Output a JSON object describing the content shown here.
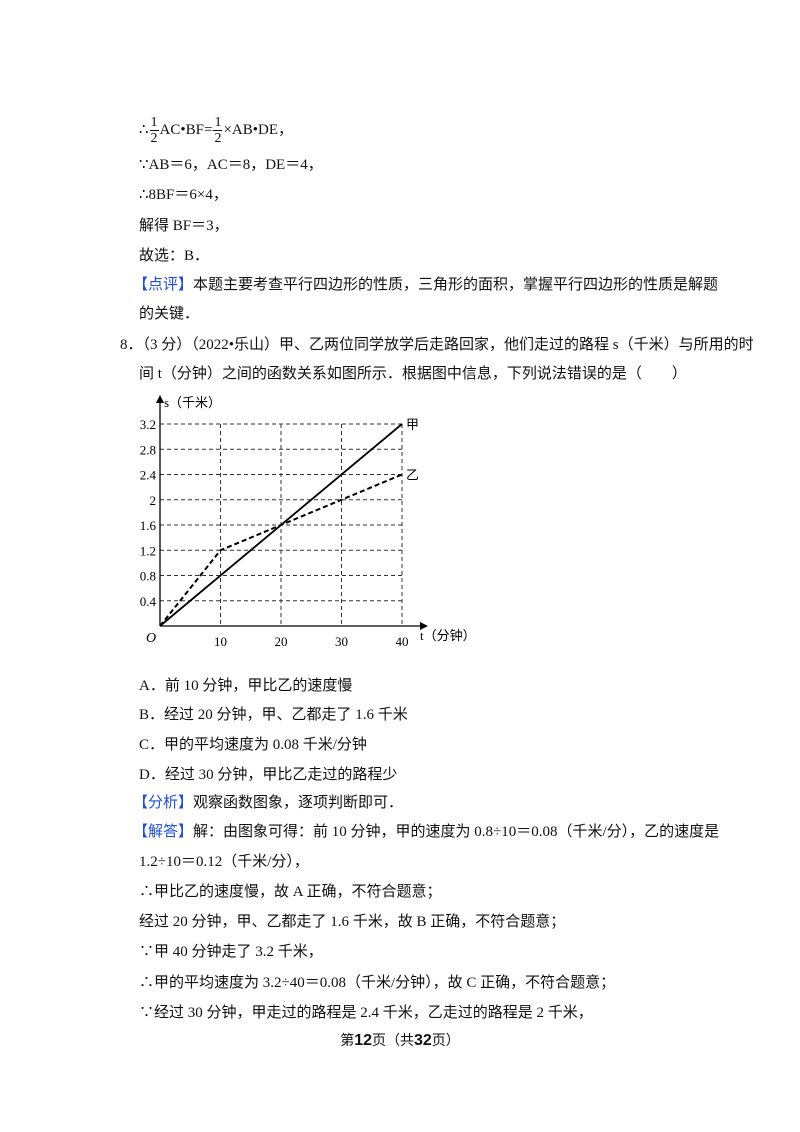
{
  "solution_prev": {
    "fraction_line": {
      "prefix": "∴",
      "num1": "1",
      "den1": "2",
      "mid": "AC•BF=",
      "num2": "1",
      "den2": "2",
      "suffix": "×AB•DE，"
    },
    "lines": [
      "∵AB＝6，AC＝8，DE＝4，",
      "∴8BF＝6×4，",
      "解得 BF＝3，",
      "故选：B．"
    ],
    "review_tag": "【点评】",
    "review_text": "本题主要考查平行四边形的性质，三角形的面积，掌握平行四边形的性质是解题",
    "review_text2": "的关键．"
  },
  "question": {
    "number": "8．",
    "line1": "（3 分）（2022•乐山）甲、乙两位同学放学后走路回家，他们走过的路程 s（千米）与所用的时",
    "line2": "间 t（分钟）之间的函数关系如图所示．根据图中信息，下列说法错误的是（　　）",
    "options": [
      "A．前 10 分钟，甲比乙的速度慢",
      "B．经过 20 分钟，甲、乙都走了 1.6 千米",
      "C．甲的平均速度为 0.08 千米/分钟",
      "D．经过 30 分钟，甲比乙走过的路程少"
    ]
  },
  "chart_data": {
    "type": "line",
    "ylabel": "s（千米）",
    "xlabel": "t（分钟）",
    "origin_label": "O",
    "x_ticks": [
      "10",
      "20",
      "30",
      "40"
    ],
    "y_ticks": [
      "0.4",
      "0.8",
      "1.2",
      "1.6",
      "2",
      "2.4",
      "2.8",
      "3.2"
    ],
    "xlim": [
      0,
      40
    ],
    "ylim": [
      0,
      3.2
    ],
    "grid": true,
    "series": [
      {
        "name": "甲",
        "style": "solid",
        "points": [
          [
            0,
            0
          ],
          [
            40,
            3.2
          ]
        ]
      },
      {
        "name": "乙",
        "style": "dashed",
        "points": [
          [
            0,
            0
          ],
          [
            10,
            1.2
          ],
          [
            40,
            2.4
          ]
        ]
      }
    ]
  },
  "analysis": {
    "tag": "【分析】",
    "text": "观察函数图象，逐项判断即可．"
  },
  "answer": {
    "tag": "【解答】",
    "text": "解：由图象可得：前 10 分钟，甲的速度为 0.8÷10＝0.08（千米/分），乙的速度是",
    "lines": [
      "1.2÷10＝0.12（千米/分），",
      "∴甲比乙的速度慢，故 A 正确，不符合题意；",
      "经过 20 分钟，甲、乙都走了 1.6 千米，故 B 正确，不符合题意；",
      "∵甲 40 分钟走了 3.2 千米，",
      "∴甲的平均速度为 3.2÷40＝0.08（千米/分钟），故 C 正确，不符合题意；",
      "∵经过 30 分钟，甲走过的路程是 2.4 千米，乙走过的路程是 2 千米，"
    ]
  },
  "footer": {
    "pre": "第",
    "page": "12",
    "mid": "页（共",
    "total": "32",
    "post": "页）"
  }
}
